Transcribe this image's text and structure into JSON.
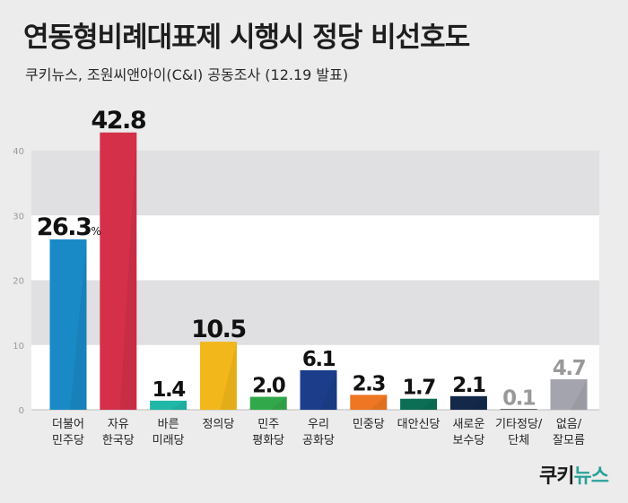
{
  "title": "연동형비례대표제 시행시 정당 비선호도",
  "subtitle": "쿠키뉴스, 조원씨앤아이(C&I) 공동조사 (12.19 발표)",
  "logo": {
    "part1": "쿠키",
    "part2": "뉴스"
  },
  "chart_data": {
    "type": "bar",
    "title": "연동형비례대표제 시행시 정당 비선호도",
    "ylim": [
      0,
      40
    ],
    "yticks": [
      0,
      10,
      20,
      30,
      40
    ],
    "grid": "alternating horizontal bands",
    "categories": [
      [
        "더불어",
        "민주당"
      ],
      [
        "자유",
        "한국당"
      ],
      [
        "바른",
        "미래당"
      ],
      [
        "정의당"
      ],
      [
        "민주",
        "평화당"
      ],
      [
        "우리",
        "공화당"
      ],
      [
        "민중당"
      ],
      [
        "대안신당"
      ],
      [
        "새로운",
        "보수당"
      ],
      [
        "기타정당/",
        "단체"
      ],
      [
        "없음/",
        "잘모름"
      ]
    ],
    "values": [
      26.3,
      42.8,
      1.4,
      10.5,
      2.0,
      6.1,
      2.3,
      1.7,
      2.1,
      0.1,
      4.7
    ],
    "labels": [
      "26.3",
      "42.8",
      "1.4",
      "10.5",
      "2.0",
      "6.1",
      "2.3",
      "1.7",
      "2.1",
      "0.1",
      "4.7"
    ],
    "first_label_unit": "%",
    "colors": [
      "#1a8ac6",
      "#d4304a",
      "#1fb7a8",
      "#f2b71b",
      "#31a94a",
      "#1c3e8a",
      "#ef7622",
      "#0b6e55",
      "#14294a",
      "#2b2b2b",
      "#a4a4ae"
    ],
    "label_colors": [
      "#111111",
      "#111111",
      "#111111",
      "#111111",
      "#111111",
      "#111111",
      "#111111",
      "#111111",
      "#111111",
      "#999999",
      "#999999"
    ]
  }
}
